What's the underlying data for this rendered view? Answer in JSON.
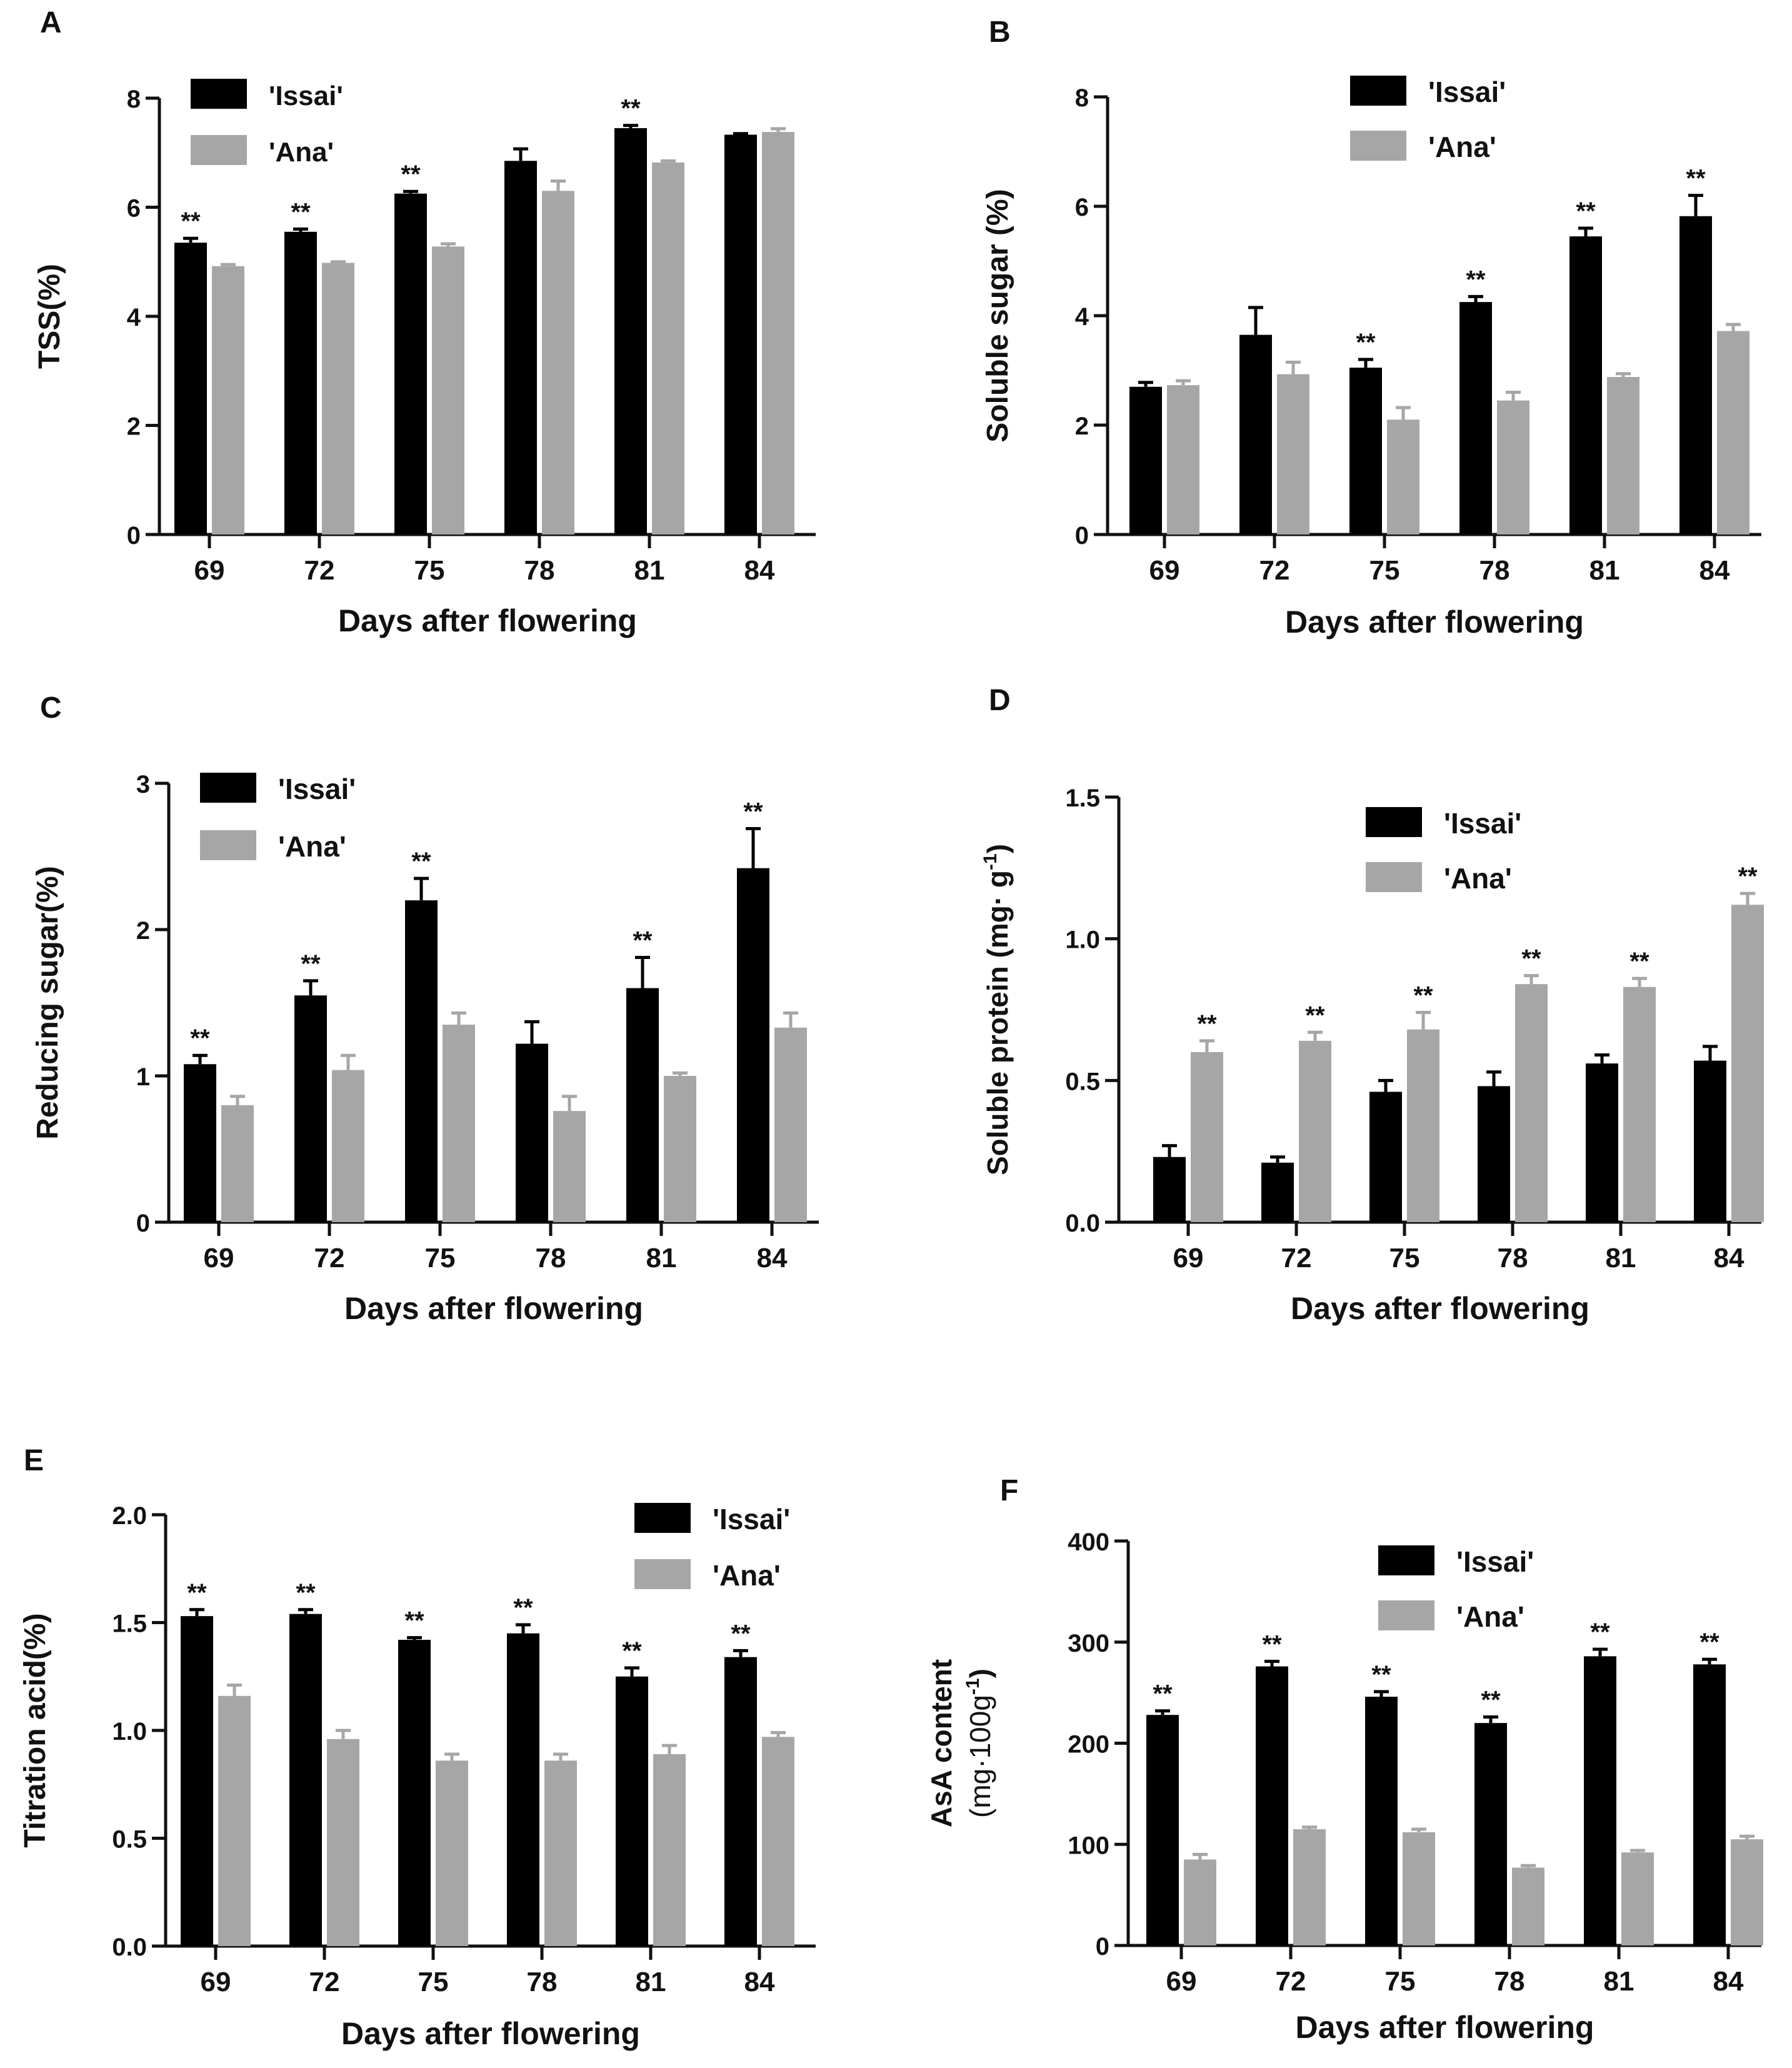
{
  "colors": {
    "issai": "#000000",
    "ana": "#a6a6a6",
    "axis": "#111111"
  },
  "chart_data": [
    {
      "panel": "A",
      "type": "bar",
      "title": "",
      "xlabel": "Days after flowering",
      "ylabel": "TSS(%)",
      "categories": [
        "69",
        "72",
        "75",
        "78",
        "81",
        "84"
      ],
      "ylim": [
        0,
        8
      ],
      "yticks": [
        "0",
        "2",
        "4",
        "6",
        "8"
      ],
      "legend_position": "top-left",
      "series": [
        {
          "name": "'Issai'",
          "values": [
            5.35,
            5.55,
            6.25,
            6.85,
            7.45,
            7.33
          ],
          "errors": [
            0.08,
            0.05,
            0.04,
            0.22,
            0.05,
            0.02
          ]
        },
        {
          "name": "'Ana'",
          "values": [
            4.92,
            4.98,
            5.28,
            6.3,
            6.82,
            7.38
          ],
          "errors": [
            0.03,
            0.02,
            0.05,
            0.18,
            0.03,
            0.06
          ]
        }
      ],
      "significance": [
        "**",
        "**",
        "**",
        "",
        "**",
        ""
      ]
    },
    {
      "panel": "B",
      "type": "bar",
      "title": "",
      "xlabel": "Days after flowering",
      "ylabel": "Soluble sugar (%)",
      "categories": [
        "69",
        "72",
        "75",
        "78",
        "81",
        "84"
      ],
      "ylim": [
        0,
        8
      ],
      "yticks": [
        "0",
        "2",
        "4",
        "6",
        "8"
      ],
      "legend_position": "top-center",
      "series": [
        {
          "name": "'Issai'",
          "values": [
            2.7,
            3.65,
            3.05,
            4.25,
            5.45,
            5.82
          ],
          "errors": [
            0.08,
            0.5,
            0.15,
            0.1,
            0.15,
            0.38
          ]
        },
        {
          "name": "'Ana'",
          "values": [
            2.73,
            2.93,
            2.1,
            2.45,
            2.88,
            3.72
          ],
          "errors": [
            0.08,
            0.22,
            0.22,
            0.15,
            0.06,
            0.12
          ]
        }
      ],
      "significance": [
        "",
        "",
        "**",
        "**",
        "**",
        "**"
      ]
    },
    {
      "panel": "C",
      "type": "bar",
      "title": "",
      "xlabel": "Days after flowering",
      "ylabel": "Reducing sugar(%)",
      "categories": [
        "69",
        "72",
        "75",
        "78",
        "81",
        "84"
      ],
      "ylim": [
        0,
        3
      ],
      "yticks": [
        "0",
        "1",
        "2",
        "3"
      ],
      "legend_position": "top-left",
      "series": [
        {
          "name": "'Issai'",
          "values": [
            1.08,
            1.55,
            2.2,
            1.22,
            1.6,
            2.42
          ],
          "errors": [
            0.06,
            0.1,
            0.15,
            0.15,
            0.21,
            0.27
          ]
        },
        {
          "name": "'Ana'",
          "values": [
            0.8,
            1.04,
            1.35,
            0.76,
            1.0,
            1.33
          ],
          "errors": [
            0.06,
            0.1,
            0.08,
            0.1,
            0.02,
            0.1
          ]
        }
      ],
      "significance": [
        "**",
        "**",
        "**",
        "",
        "**",
        "**"
      ]
    },
    {
      "panel": "D",
      "type": "bar",
      "title": "",
      "xlabel": "Days after flowering",
      "ylabel": "Soluble protein (mg· g",
      "ylabel_sup": "-1",
      "ylabel_tail": ")",
      "categories": [
        "69",
        "72",
        "75",
        "78",
        "81",
        "84"
      ],
      "ylim": [
        0,
        1.5
      ],
      "yticks": [
        "0.0",
        "0.5",
        "1.0",
        "1.5"
      ],
      "legend_position": "top-center",
      "series": [
        {
          "name": "'Issai'",
          "values": [
            0.23,
            0.21,
            0.46,
            0.48,
            0.56,
            0.57
          ],
          "errors": [
            0.04,
            0.02,
            0.04,
            0.05,
            0.03,
            0.05
          ]
        },
        {
          "name": "'Ana'",
          "values": [
            0.6,
            0.64,
            0.68,
            0.84,
            0.83,
            1.12
          ],
          "errors": [
            0.04,
            0.03,
            0.06,
            0.03,
            0.03,
            0.04
          ]
        }
      ],
      "significance": [
        "**",
        "**",
        "**",
        "**",
        "**",
        "**"
      ]
    },
    {
      "panel": "E",
      "type": "bar",
      "title": "",
      "xlabel": "Days after flowering",
      "ylabel": "Titration acid(%)",
      "categories": [
        "69",
        "72",
        "75",
        "78",
        "81",
        "84"
      ],
      "ylim": [
        0,
        2.0
      ],
      "yticks": [
        "0.0",
        "0.5",
        "1.0",
        "1.5",
        "2.0"
      ],
      "legend_position": "top-right",
      "series": [
        {
          "name": "'Issai'",
          "values": [
            1.53,
            1.54,
            1.42,
            1.45,
            1.25,
            1.34
          ],
          "errors": [
            0.03,
            0.02,
            0.01,
            0.04,
            0.04,
            0.03
          ]
        },
        {
          "name": "'Ana'",
          "values": [
            1.16,
            0.96,
            0.86,
            0.86,
            0.89,
            0.97
          ],
          "errors": [
            0.05,
            0.04,
            0.03,
            0.03,
            0.04,
            0.02
          ]
        }
      ],
      "significance": [
        "**",
        "**",
        "**",
        "**",
        "**",
        "**"
      ]
    },
    {
      "panel": "F",
      "type": "bar",
      "title": "",
      "xlabel": "Days after flowering",
      "ylabel": "AsA content",
      "ylabel_line2": "(mg·100g",
      "ylabel_sup": "-1",
      "ylabel_tail": ")",
      "categories": [
        "69",
        "72",
        "75",
        "78",
        "81",
        "84"
      ],
      "ylim": [
        0,
        400
      ],
      "yticks": [
        "0",
        "100",
        "200",
        "300",
        "400"
      ],
      "legend_position": "top-center",
      "series": [
        {
          "name": "'Issai'",
          "values": [
            228,
            276,
            246,
            220,
            286,
            278
          ],
          "errors": [
            4,
            5,
            5,
            6,
            7,
            5
          ]
        },
        {
          "name": "'Ana'",
          "values": [
            85,
            115,
            112,
            77,
            92,
            105
          ],
          "errors": [
            5,
            2,
            3,
            2,
            2,
            3
          ]
        }
      ],
      "significance": [
        "**",
        "**",
        "**",
        "**",
        "**",
        "**"
      ]
    }
  ]
}
